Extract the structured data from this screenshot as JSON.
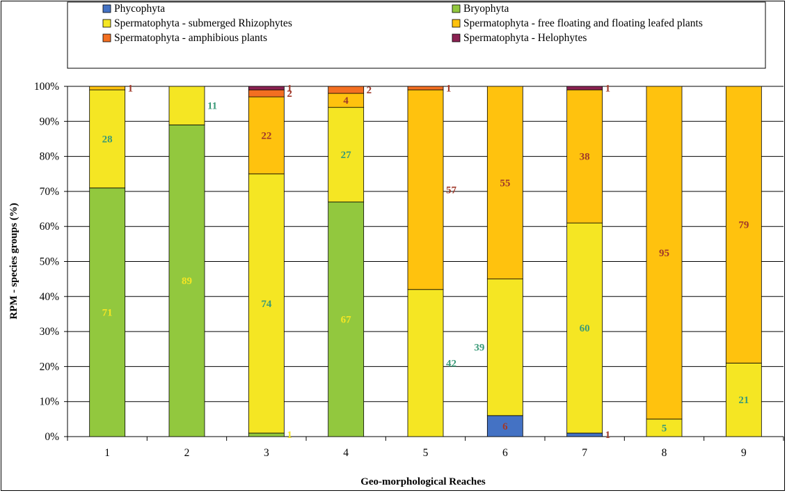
{
  "chart_data": {
    "type": "bar",
    "stacked": true,
    "percent": true,
    "categories": [
      "1",
      "2",
      "3",
      "4",
      "5",
      "6",
      "7",
      "8",
      "9"
    ],
    "xlabel": "Geo-morphological Reaches",
    "ylabel": "RPM - species groups  (%)",
    "ylim": [
      0,
      100
    ],
    "yticks": [
      "0%",
      "10%",
      "20%",
      "30%",
      "40%",
      "50%",
      "60%",
      "70%",
      "80%",
      "90%",
      "100%"
    ],
    "grid": true,
    "legend_position": "top",
    "series": [
      {
        "name": "Phycophyta",
        "color": "#4472c4",
        "label_color": "#a0392a",
        "values": [
          0,
          0,
          0,
          0,
          0,
          6,
          1,
          0,
          0
        ],
        "labels": [
          "",
          "",
          "",
          "",
          "",
          "6",
          "1",
          "",
          ""
        ]
      },
      {
        "name": "Bryophyta",
        "color": "#92c83e",
        "label_color": "#f5e623",
        "values": [
          71,
          89,
          1,
          67,
          0,
          0,
          0,
          0,
          0
        ],
        "labels": [
          "71",
          "89",
          "1",
          "67",
          "",
          "",
          "",
          "",
          ""
        ]
      },
      {
        "name": "Spermatophyta - submerged Rhizophytes",
        "color": "#f5e623",
        "label_color": "#3a9a78",
        "values": [
          28,
          11,
          74,
          27,
          42,
          39,
          60,
          5,
          21
        ],
        "labels": [
          "28",
          "11",
          "74",
          "27",
          "42",
          "39",
          "60",
          "5",
          "21"
        ]
      },
      {
        "name": "Spermatophyta - free floating and floating leafed plants",
        "color": "#ffc20e",
        "label_color": "#a0392a",
        "values": [
          1,
          0,
          22,
          4,
          57,
          55,
          38,
          95,
          79
        ],
        "labels": [
          "1",
          "",
          "22",
          "4",
          "57",
          "55",
          "38",
          "95",
          "79"
        ]
      },
      {
        "name": "Spermatophyta - amphibious plants",
        "color": "#f36f21",
        "label_color": "#a0392a",
        "values": [
          0,
          0,
          2,
          2,
          1,
          0,
          0,
          0,
          0
        ],
        "labels": [
          "",
          "",
          "2",
          "2",
          "1",
          "",
          "",
          "",
          ""
        ]
      },
      {
        "name": "Spermatophyta - Helophytes",
        "color": "#8b2252",
        "label_color": "#a0392a",
        "values": [
          0,
          0,
          1,
          0,
          0,
          0,
          1,
          0,
          0
        ],
        "labels": [
          "",
          "",
          "1",
          "",
          "",
          "",
          "1",
          "",
          ""
        ]
      }
    ]
  }
}
